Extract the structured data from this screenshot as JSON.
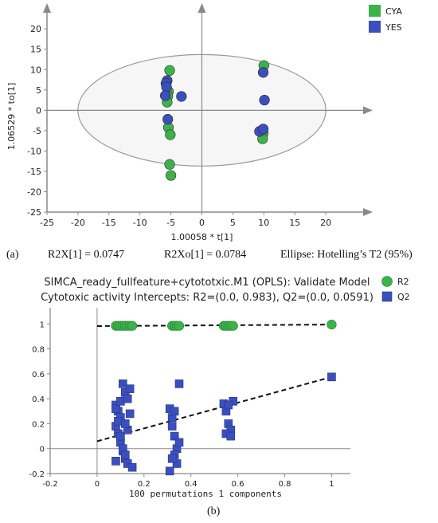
{
  "panel_a": {
    "label": "(a)",
    "stats": [
      "R2X[1] = 0.0747",
      "R2Xo[1] = 0.0784",
      "Ellipse: Hotelling’s T2 (95%)"
    ]
  },
  "panel_b": {
    "label": "(b)"
  },
  "chart_data": [
    {
      "type": "scatter",
      "title": "",
      "xlabel": "1.00058 * t[1]",
      "ylabel": "1.06529 * to[1]",
      "xlim": [
        -25,
        25
      ],
      "ylim": [
        -25,
        22
      ],
      "xticks": [
        -25,
        -20,
        -15,
        -10,
        -5,
        0,
        5,
        10,
        15,
        20
      ],
      "yticks": [
        -25,
        -20,
        -15,
        -10,
        -5,
        0,
        5,
        10,
        15,
        20
      ],
      "grid": false,
      "legend": "top-right",
      "ellipse": {
        "label": "Hotelling’s T2 (95%)",
        "center": [
          0,
          0
        ],
        "rx": 20,
        "ry": 13.7
      },
      "series": [
        {
          "name": "CYA",
          "color": "#3cb34a",
          "points": [
            [
              -5.2,
              9.8
            ],
            [
              -5.4,
              4.6
            ],
            [
              -5.5,
              3.5
            ],
            [
              -5.6,
              2.0
            ],
            [
              -5.4,
              -4.2
            ],
            [
              -5.1,
              -6.0
            ],
            [
              -5.2,
              -13.3
            ],
            [
              -5.0,
              -16.0
            ],
            [
              10.0,
              11.0
            ],
            [
              9.9,
              -5.6
            ],
            [
              9.8,
              -7.0
            ]
          ]
        },
        {
          "name": "YES",
          "color": "#3b4fbf",
          "points": [
            [
              -5.6,
              7.3
            ],
            [
              -5.8,
              6.6
            ],
            [
              -5.7,
              5.7
            ],
            [
              -5.9,
              3.6
            ],
            [
              -3.3,
              3.4
            ],
            [
              -5.5,
              -2.2
            ],
            [
              9.9,
              9.3
            ],
            [
              10.1,
              2.5
            ],
            [
              9.3,
              -5.2
            ],
            [
              9.9,
              -4.6
            ]
          ]
        }
      ]
    },
    {
      "type": "scatter",
      "title": "SIMCA_ready_fullfeature+cytototxic.M1 (OPLS): Validate Model",
      "subtitle": "Cytotoxic activity Intercepts: R2=(0.0, 0.983), Q2=(0.0, 0.0591)",
      "xlabel": "100 permutations 1 components",
      "ylabel": "",
      "xlim": [
        -0.2,
        1.08
      ],
      "ylim": [
        -0.2,
        1.13
      ],
      "xticks": [
        -0.2,
        0,
        0.2,
        0.4,
        0.6,
        0.8,
        1
      ],
      "ytick_labels": [
        "-0.2",
        "0",
        "0.2",
        "0.4",
        "0.6",
        "0.8",
        "1"
      ],
      "grid": false,
      "legend": "top-right",
      "trend_lines": [
        {
          "series": "R2",
          "from": [
            0,
            0.983
          ],
          "to": [
            1,
            0.995
          ]
        },
        {
          "series": "Q2",
          "from": [
            0,
            0.0591
          ],
          "to": [
            1,
            0.575
          ]
        }
      ],
      "series": [
        {
          "name": "R2",
          "color": "#3cb34a",
          "marker": "circle",
          "points": [
            [
              0.08,
              0.985
            ],
            [
              0.09,
              0.985
            ],
            [
              0.1,
              0.985
            ],
            [
              0.11,
              0.985
            ],
            [
              0.12,
              0.985
            ],
            [
              0.13,
              0.985
            ],
            [
              0.14,
              0.985
            ],
            [
              0.15,
              0.985
            ],
            [
              0.32,
              0.985
            ],
            [
              0.33,
              0.985
            ],
            [
              0.34,
              0.985
            ],
            [
              0.35,
              0.985
            ],
            [
              0.54,
              0.985
            ],
            [
              0.55,
              0.985
            ],
            [
              0.56,
              0.985
            ],
            [
              0.57,
              0.985
            ],
            [
              0.58,
              0.985
            ],
            [
              1.0,
              0.995
            ]
          ]
        },
        {
          "name": "Q2",
          "color": "#3b4fbf",
          "marker": "square",
          "points": [
            [
              0.08,
              0.35
            ],
            [
              0.09,
              0.3
            ],
            [
              0.1,
              0.25
            ],
            [
              0.11,
              0.52
            ],
            [
              0.12,
              0.45
            ],
            [
              0.08,
              0.18
            ],
            [
              0.09,
              0.12
            ],
            [
              0.1,
              0.05
            ],
            [
              0.11,
              -0.02
            ],
            [
              0.12,
              -0.08
            ],
            [
              0.13,
              -0.12
            ],
            [
              0.14,
              0.48
            ],
            [
              0.08,
              0.32
            ],
            [
              0.09,
              0.22
            ],
            [
              0.1,
              0.1
            ],
            [
              0.11,
              0.0
            ],
            [
              0.12,
              -0.05
            ],
            [
              0.13,
              0.15
            ],
            [
              0.14,
              0.28
            ],
            [
              0.15,
              -0.15
            ],
            [
              0.1,
              0.38
            ],
            [
              0.13,
              0.4
            ],
            [
              0.08,
              -0.1
            ],
            [
              0.12,
              0.2
            ],
            [
              0.31,
              0.32
            ],
            [
              0.32,
              0.25
            ],
            [
              0.33,
              0.1
            ],
            [
              0.34,
              0.0
            ],
            [
              0.35,
              0.52
            ],
            [
              0.32,
              0.18
            ],
            [
              0.33,
              -0.05
            ],
            [
              0.34,
              -0.12
            ],
            [
              0.31,
              -0.18
            ],
            [
              0.33,
              0.3
            ],
            [
              0.35,
              0.05
            ],
            [
              0.32,
              -0.08
            ],
            [
              0.54,
              0.36
            ],
            [
              0.55,
              0.3
            ],
            [
              0.56,
              0.2
            ],
            [
              0.57,
              0.15
            ],
            [
              0.58,
              0.38
            ],
            [
              0.55,
              0.12
            ],
            [
              0.57,
              0.1
            ],
            [
              0.56,
              0.35
            ],
            [
              1.0,
              0.575
            ]
          ]
        }
      ]
    }
  ]
}
